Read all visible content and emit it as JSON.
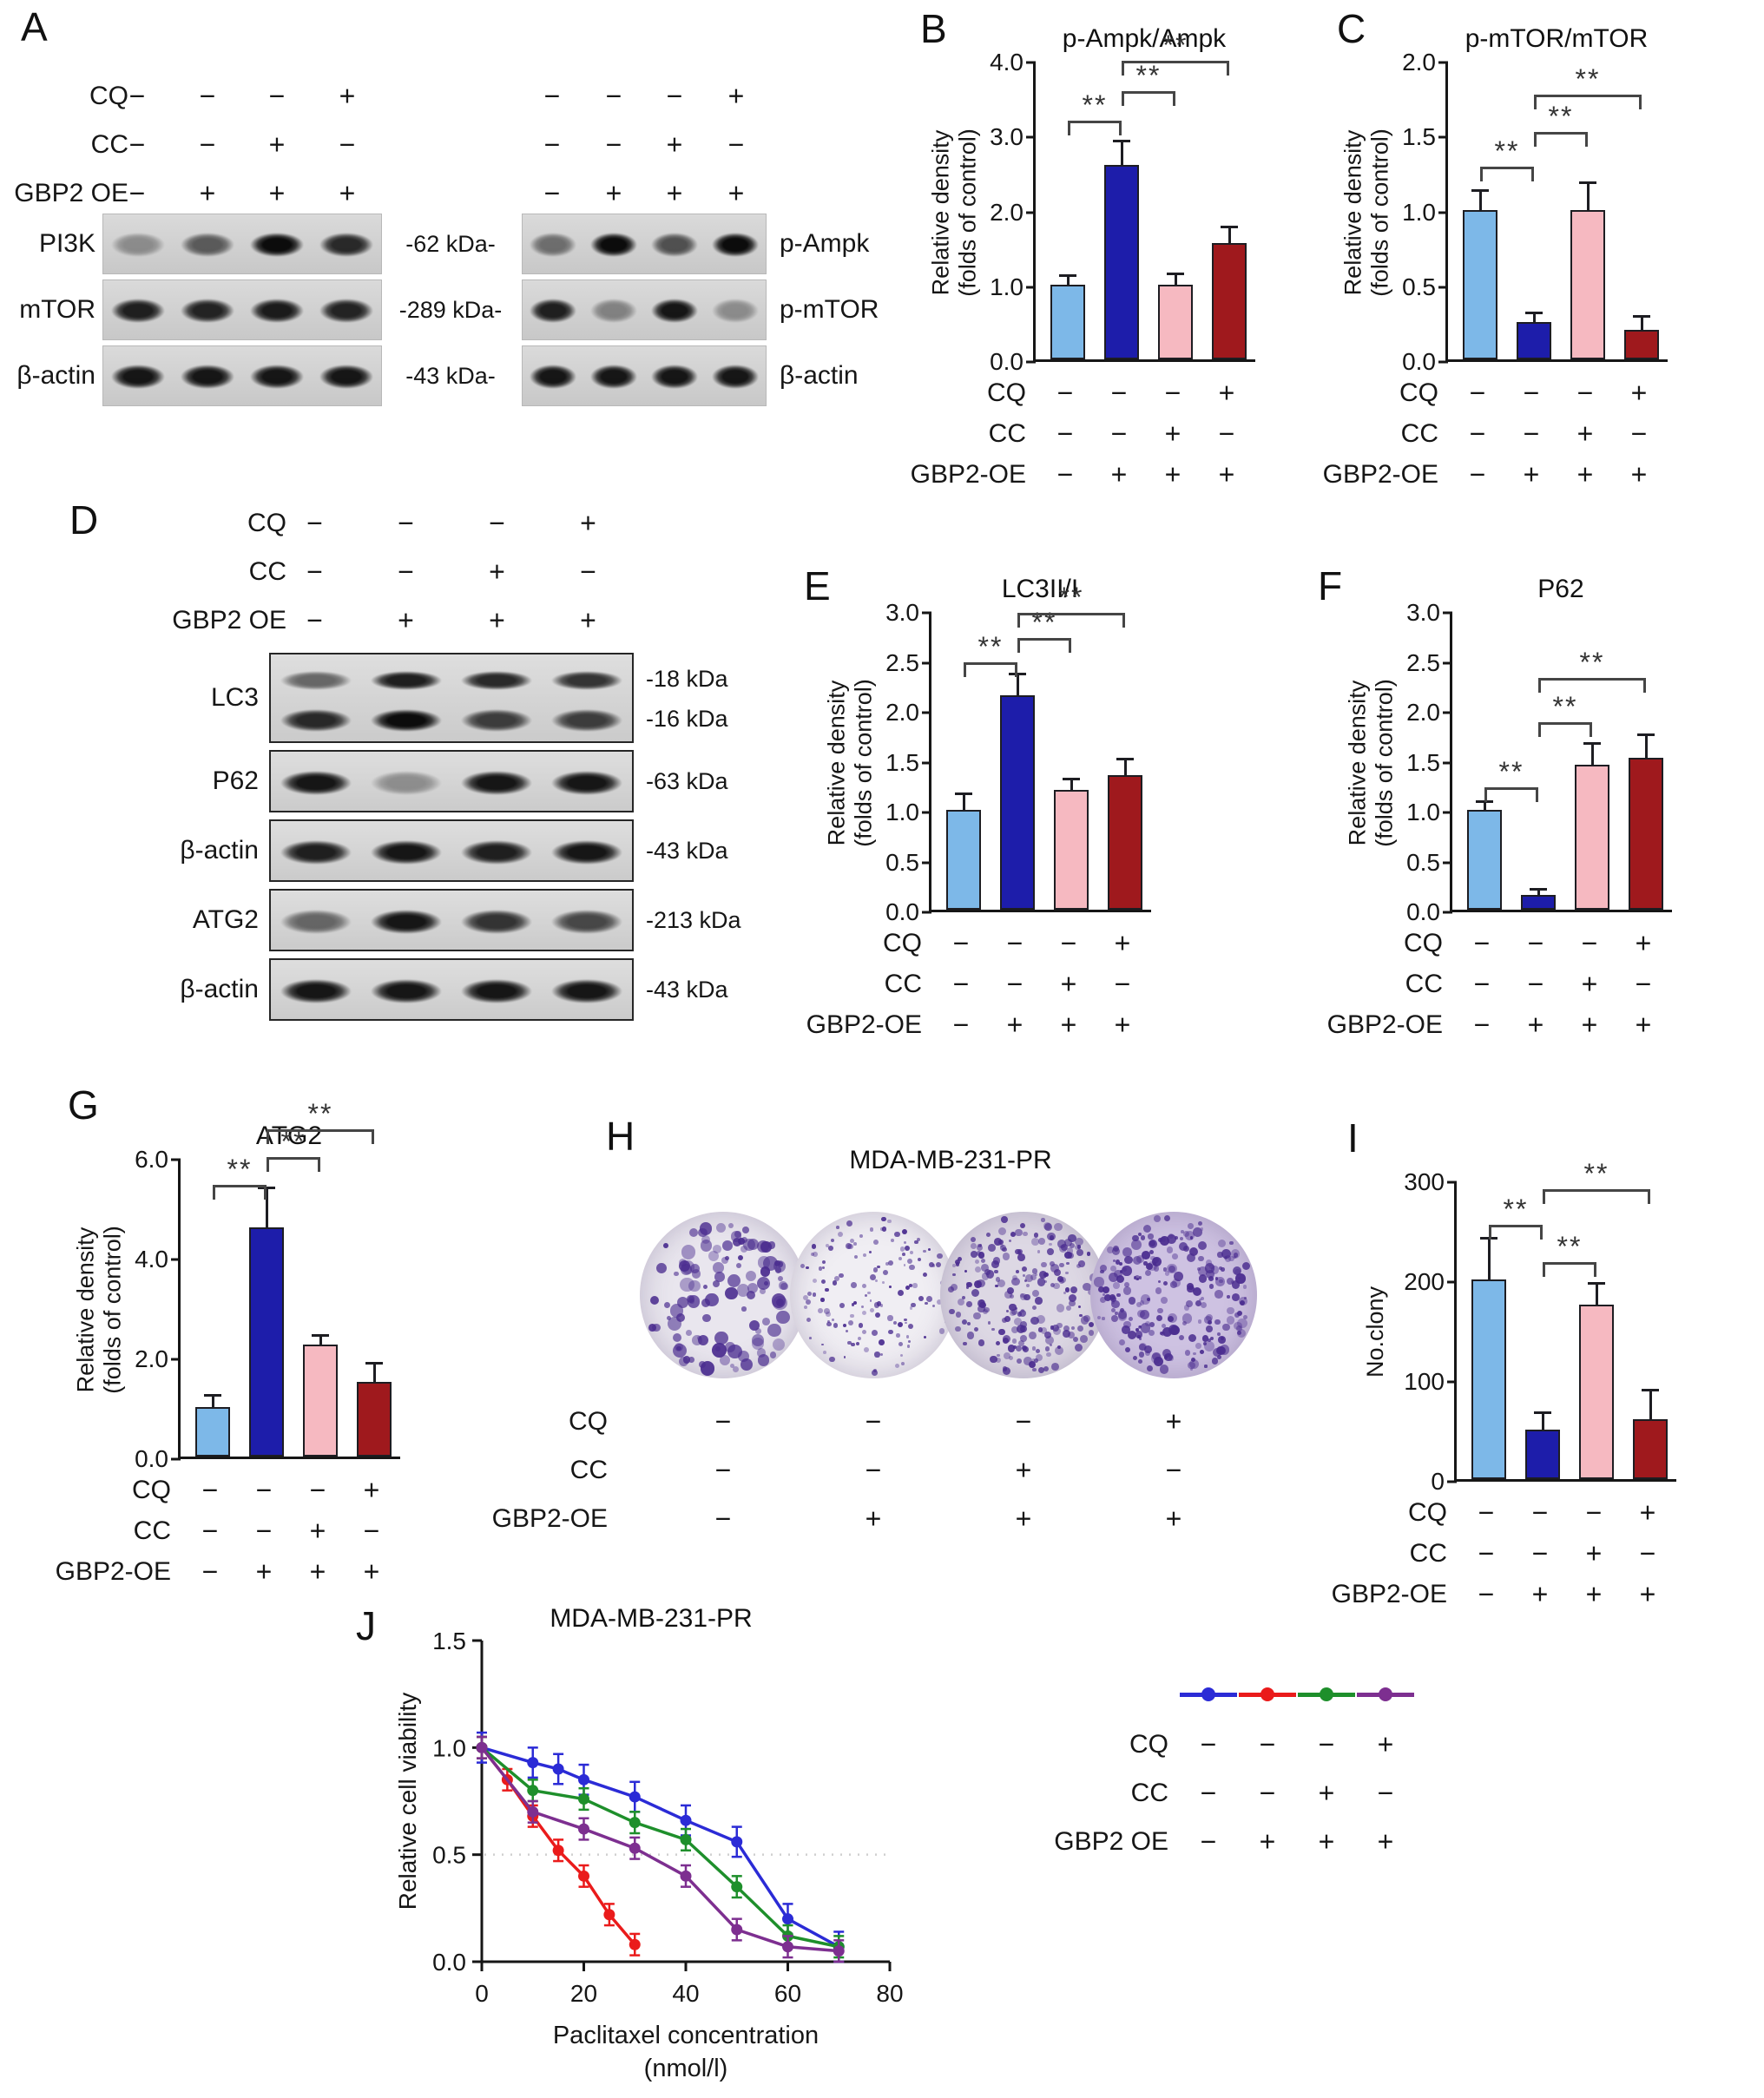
{
  "figure": {
    "bg": "#ffffff"
  },
  "colors": {
    "light_blue": "#7db8e8",
    "dark_blue": "#1d1daa",
    "pink": "#f6b9c1",
    "dark_red": "#9f191d",
    "line_blue": "#2b2bd6",
    "line_red": "#ea1b1b",
    "line_green": "#1e8f2b",
    "line_purple": "#7d2f90",
    "axis": "#161616",
    "colony_ink": "#4a2c8f"
  },
  "panels": {
    "A": {
      "label": "A",
      "conditions": [
        {
          "label": "CQ",
          "values": [
            "−",
            "−",
            "−",
            "+"
          ]
        },
        {
          "label": "CC",
          "values": [
            "−",
            "−",
            "+",
            "−"
          ]
        },
        {
          "label": "GBP2 OE",
          "values": [
            "−",
            "+",
            "+",
            "+"
          ]
        }
      ],
      "left_blot": {
        "rows": [
          {
            "protein": "PI3K",
            "kda": "-62 kDa-",
            "bands": [
              0.35,
              0.6,
              1.0,
              0.85
            ]
          },
          {
            "protein": "mTOR",
            "kda": "-289 kDa-",
            "bands": [
              0.9,
              0.88,
              0.92,
              0.88
            ]
          },
          {
            "protein": "β-actin",
            "kda": "-43 kDa-",
            "bands": [
              0.95,
              0.95,
              0.95,
              0.95
            ]
          }
        ]
      },
      "right_blot": {
        "rows": [
          {
            "protein": "p-Ampk",
            "bands": [
              0.5,
              1.0,
              0.65,
              1.0
            ]
          },
          {
            "protein": "p-mTOR",
            "bands": [
              0.9,
              0.4,
              0.95,
              0.35
            ]
          },
          {
            "protein": "β-actin",
            "bands": [
              0.95,
              0.95,
              0.95,
              0.95
            ]
          }
        ]
      }
    },
    "B": {
      "label": "B"
    },
    "C": {
      "label": "C"
    },
    "D": {
      "label": "D",
      "conditions": [
        {
          "label": "CQ",
          "values": [
            "−",
            "−",
            "−",
            "+"
          ]
        },
        {
          "label": "CC",
          "values": [
            "−",
            "−",
            "+",
            "−"
          ]
        },
        {
          "label": "GBP2 OE",
          "values": [
            "−",
            "+",
            "+",
            "+"
          ]
        }
      ],
      "blot_rows": [
        {
          "protein": "LC3",
          "kda": [
            "-18 kDa",
            "-16 kDa"
          ],
          "double": true,
          "bands_top": [
            0.55,
            0.9,
            0.85,
            0.8
          ],
          "bands_bottom": [
            0.85,
            1.0,
            0.75,
            0.75
          ]
        },
        {
          "protein": "P62",
          "kda": [
            "-63 kDa"
          ],
          "bands": [
            0.95,
            0.35,
            0.95,
            0.95
          ]
        },
        {
          "protein": "β-actin",
          "kda": [
            "-43 kDa"
          ],
          "bands": [
            0.9,
            0.95,
            0.9,
            0.95
          ]
        },
        {
          "protein": "ATG2",
          "kda": [
            "-213 kDa"
          ],
          "bands": [
            0.55,
            0.95,
            0.8,
            0.7
          ]
        },
        {
          "protein": "β-actin",
          "kda": [
            "-43 kDa"
          ],
          "bands": [
            0.95,
            0.95,
            0.95,
            0.95
          ]
        }
      ]
    },
    "E": {
      "label": "E"
    },
    "F": {
      "label": "F"
    },
    "G": {
      "label": "G"
    },
    "H": {
      "label": "H",
      "title": "MDA-MB-231-PR",
      "circles": [
        {
          "dots": 115,
          "dot_min": 5,
          "dot_max": 17,
          "bg": "#e9e6ee"
        },
        {
          "dots": 150,
          "dot_min": 2.5,
          "dot_max": 7,
          "bg": "#f0eef3"
        },
        {
          "dots": 230,
          "dot_min": 3,
          "dot_max": 10,
          "bg": "#ddd8e4"
        },
        {
          "dots": 245,
          "dot_min": 3,
          "dot_max": 12,
          "bg": "#cec2e2"
        }
      ],
      "conditions": [
        {
          "label": "CQ",
          "values": [
            "−",
            "−",
            "−",
            "+"
          ]
        },
        {
          "label": "CC",
          "values": [
            "−",
            "−",
            "+",
            "−"
          ]
        },
        {
          "label": "GBP2-OE",
          "values": [
            "−",
            "+",
            "+",
            "+"
          ]
        }
      ]
    },
    "I": {
      "label": "I"
    },
    "J": {
      "label": "J"
    }
  },
  "chart_data": [
    {
      "panel": "B",
      "type": "bar",
      "title": "p-Ampk/Ampk",
      "ylabel": [
        "Relative density",
        "(folds of control)"
      ],
      "ytick_labels": [
        "0.0",
        "1.0",
        "2.0",
        "3.0",
        "4.0"
      ],
      "ymax": 4.0,
      "values": [
        1.0,
        2.6,
        1.0,
        1.55
      ],
      "errors": [
        0.1,
        0.3,
        0.12,
        0.2
      ],
      "bar_colors": [
        "light_blue",
        "dark_blue",
        "pink",
        "dark_red"
      ],
      "sig": [
        {
          "a": 0,
          "b": 1,
          "y": 3.15,
          "label": "**"
        },
        {
          "a": 1,
          "b": 2,
          "y": 3.55,
          "label": "**"
        },
        {
          "a": 1,
          "b": 3,
          "y": 3.95,
          "label": "**"
        }
      ],
      "conditions": [
        {
          "label": "CQ",
          "values": [
            "−",
            "−",
            "−",
            "+"
          ]
        },
        {
          "label": "CC",
          "values": [
            "−",
            "−",
            "+",
            "−"
          ]
        },
        {
          "label": "GBP2-OE",
          "values": [
            "−",
            "+",
            "+",
            "+"
          ]
        }
      ]
    },
    {
      "panel": "C",
      "type": "bar",
      "title": "p-mTOR/mTOR",
      "ylabel": [
        "Relative density",
        "(folds of control)"
      ],
      "ytick_labels": [
        "0.0",
        "0.5",
        "1.0",
        "1.5",
        "2.0"
      ],
      "ymax": 2.0,
      "values": [
        1.0,
        0.25,
        1.0,
        0.2
      ],
      "errors": [
        0.12,
        0.05,
        0.17,
        0.08
      ],
      "bar_colors": [
        "light_blue",
        "dark_blue",
        "pink",
        "dark_red"
      ],
      "sig": [
        {
          "a": 0,
          "b": 1,
          "y": 1.27,
          "label": "**"
        },
        {
          "a": 1,
          "b": 2,
          "y": 1.5,
          "label": "**"
        },
        {
          "a": 1,
          "b": 3,
          "y": 1.75,
          "label": "**"
        }
      ],
      "conditions": [
        {
          "label": "CQ",
          "values": [
            "−",
            "−",
            "−",
            "+"
          ]
        },
        {
          "label": "CC",
          "values": [
            "−",
            "−",
            "+",
            "−"
          ]
        },
        {
          "label": "GBP2-OE",
          "values": [
            "−",
            "+",
            "+",
            "+"
          ]
        }
      ]
    },
    {
      "panel": "E",
      "type": "bar",
      "title": "LC3II/I",
      "ylabel": [
        "Relative density",
        "(folds of control)"
      ],
      "ytick_labels": [
        "0.0",
        "0.5",
        "1.0",
        "1.5",
        "2.0",
        "2.5",
        "3.0"
      ],
      "ymax": 3.0,
      "values": [
        1.0,
        2.15,
        1.2,
        1.35
      ],
      "errors": [
        0.15,
        0.2,
        0.1,
        0.15
      ],
      "bar_colors": [
        "light_blue",
        "dark_blue",
        "pink",
        "dark_red"
      ],
      "sig": [
        {
          "a": 0,
          "b": 1,
          "y": 2.45,
          "label": "**"
        },
        {
          "a": 1,
          "b": 2,
          "y": 2.7,
          "label": "**"
        },
        {
          "a": 1,
          "b": 3,
          "y": 2.95,
          "label": "**"
        }
      ],
      "conditions": [
        {
          "label": "CQ",
          "values": [
            "−",
            "−",
            "−",
            "+"
          ]
        },
        {
          "label": "CC",
          "values": [
            "−",
            "−",
            "+",
            "−"
          ]
        },
        {
          "label": "GBP2-OE",
          "values": [
            "−",
            "+",
            "+",
            "+"
          ]
        }
      ]
    },
    {
      "panel": "F",
      "type": "bar",
      "title": "P62",
      "ylabel": [
        "Relative density",
        "(folds of control)"
      ],
      "ytick_labels": [
        "0.0",
        "0.5",
        "1.0",
        "1.5",
        "2.0",
        "2.5",
        "3.0"
      ],
      "ymax": 3.0,
      "values": [
        1.0,
        0.15,
        1.45,
        1.52
      ],
      "errors": [
        0.07,
        0.04,
        0.2,
        0.22
      ],
      "bar_colors": [
        "light_blue",
        "dark_blue",
        "pink",
        "dark_red"
      ],
      "sig": [
        {
          "a": 0,
          "b": 1,
          "y": 1.2,
          "label": "**"
        },
        {
          "a": 1,
          "b": 2,
          "y": 1.85,
          "label": "**"
        },
        {
          "a": 1,
          "b": 3,
          "y": 2.3,
          "label": "**"
        }
      ],
      "conditions": [
        {
          "label": "CQ",
          "values": [
            "−",
            "−",
            "−",
            "+"
          ]
        },
        {
          "label": "CC",
          "values": [
            "−",
            "−",
            "+",
            "−"
          ]
        },
        {
          "label": "GBP2-OE",
          "values": [
            "−",
            "+",
            "+",
            "+"
          ]
        }
      ]
    },
    {
      "panel": "G",
      "type": "bar",
      "title": "ATG2",
      "ylabel": [
        "Relative density",
        "(folds of control)"
      ],
      "ytick_labels": [
        "0.0",
        "2.0",
        "4.0",
        "6.0"
      ],
      "ymax": 6.0,
      "values": [
        1.0,
        4.6,
        2.25,
        1.5
      ],
      "errors": [
        0.2,
        0.75,
        0.15,
        0.35
      ],
      "bar_colors": [
        "light_blue",
        "dark_blue",
        "pink",
        "dark_red"
      ],
      "sig": [
        {
          "a": 0,
          "b": 1,
          "y": 5.4,
          "label": "**"
        },
        {
          "a": 1,
          "b": 2,
          "y": 5.95,
          "label": "**"
        },
        {
          "a": 1,
          "b": 3,
          "y": 6.5,
          "label": "**"
        }
      ],
      "conditions": [
        {
          "label": "CQ",
          "values": [
            "−",
            "−",
            "−",
            "+"
          ]
        },
        {
          "label": "CC",
          "values": [
            "−",
            "−",
            "+",
            "−"
          ]
        },
        {
          "label": "GBP2-OE",
          "values": [
            "−",
            "+",
            "+",
            "+"
          ]
        }
      ]
    },
    {
      "panel": "I",
      "type": "bar",
      "title": "",
      "ylabel": [
        "No.clony"
      ],
      "ytick_labels": [
        "0",
        "100",
        "200",
        "300"
      ],
      "ymax": 300,
      "values": [
        200,
        50,
        175,
        60
      ],
      "errors": [
        40,
        15,
        20,
        28
      ],
      "bar_colors": [
        "light_blue",
        "dark_blue",
        "pink",
        "dark_red"
      ],
      "sig": [
        {
          "a": 0,
          "b": 1,
          "y": 252,
          "label": "**"
        },
        {
          "a": 1,
          "b": 2,
          "y": 215,
          "label": "**"
        },
        {
          "a": 1,
          "b": 3,
          "y": 288,
          "label": "**"
        }
      ],
      "conditions": [
        {
          "label": "CQ",
          "values": [
            "−",
            "−",
            "−",
            "+"
          ]
        },
        {
          "label": "CC",
          "values": [
            "−",
            "−",
            "+",
            "−"
          ]
        },
        {
          "label": "GBP2-OE",
          "values": [
            "−",
            "+",
            "+",
            "+"
          ]
        }
      ]
    },
    {
      "panel": "J",
      "type": "line",
      "title": "MDA-MB-231-PR",
      "ylabel": "Relative cell viability",
      "xlabel": [
        "Paclitaxel concentration",
        "(nmol/l)"
      ],
      "xtick_labels": [
        "0",
        "20",
        "40",
        "60",
        "80"
      ],
      "ytick_labels": [
        "0.0",
        "0.5",
        "1.0",
        "1.5"
      ],
      "xmax": 80,
      "ymax": 1.5,
      "reference_line_y": 0.5,
      "series": [
        {
          "color_key": "line_blue",
          "conditions": [
            "−",
            "−",
            "−"
          ],
          "err": 0.07,
          "x": [
            0,
            10,
            15,
            20,
            30,
            40,
            50,
            60,
            70
          ],
          "y": [
            1.0,
            0.93,
            0.9,
            0.85,
            0.77,
            0.66,
            0.56,
            0.2,
            0.07
          ]
        },
        {
          "color_key": "line_red",
          "conditions": [
            "−",
            "−",
            "+"
          ],
          "err": 0.05,
          "x": [
            0,
            5,
            10,
            15,
            20,
            25,
            30
          ],
          "y": [
            1.0,
            0.85,
            0.68,
            0.52,
            0.4,
            0.22,
            0.08
          ]
        },
        {
          "color_key": "line_green",
          "conditions": [
            "+",
            "+",
            "−"
          ],
          "err": 0.05,
          "x": [
            0,
            10,
            20,
            30,
            40,
            50,
            60,
            70
          ],
          "y": [
            1.0,
            0.8,
            0.76,
            0.65,
            0.57,
            0.35,
            0.12,
            0.07
          ]
        },
        {
          "color_key": "line_purple",
          "conditions": [
            "+",
            "−",
            "+"
          ],
          "err": 0.05,
          "x": [
            0,
            10,
            20,
            30,
            40,
            50,
            60,
            70
          ],
          "y": [
            1.0,
            0.7,
            0.62,
            0.53,
            0.4,
            0.15,
            0.07,
            0.05
          ]
        }
      ],
      "legend_conditions": [
        {
          "label": "CQ",
          "values": [
            "−",
            "−",
            "−",
            "+"
          ]
        },
        {
          "label": "CC",
          "values": [
            "−",
            "−",
            "+",
            "−"
          ]
        },
        {
          "label": "GBP2 OE",
          "values": [
            "−",
            "+",
            "+",
            "+"
          ]
        }
      ]
    }
  ]
}
